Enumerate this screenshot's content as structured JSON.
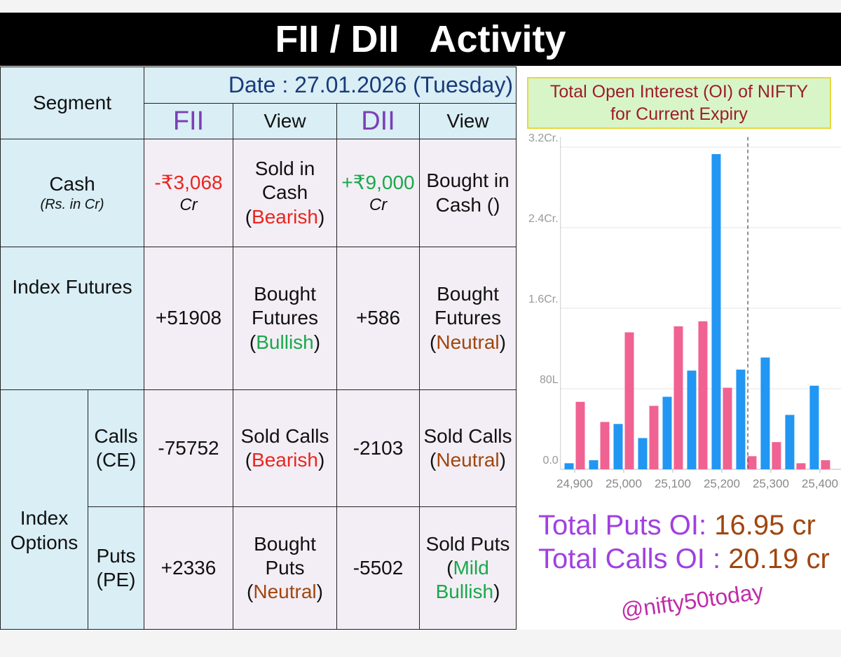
{
  "header": {
    "title": "FII / DII   Activity"
  },
  "table": {
    "segment_label": "Segment",
    "date": "Date : 27.01.2026 (Tuesday)",
    "columns": [
      "FII",
      "View",
      "DII",
      "View"
    ],
    "cash": {
      "segment": "Cash",
      "note": "(Rs. in Cr)",
      "fii": {
        "amount": "-₹3,068",
        "unit": "Cr",
        "color": "#e8261f"
      },
      "fii_view": {
        "before": "Sold in Cash (",
        "word": "Bearish",
        "after": ")",
        "color": "#e8261f"
      },
      "dii": {
        "amount": "+₹9,000",
        "unit": "Cr",
        "color": "#1aa84a"
      },
      "dii_view": {
        "text": "Bought in Cash ()"
      }
    },
    "futures": {
      "segment": "Index Futures",
      "fii": "+51908",
      "fii_view": {
        "before": "Bought Futures (",
        "word": "Bullish",
        "after": ")",
        "color": "#1aa84a"
      },
      "dii": "+586",
      "dii_view": {
        "before": "Bought Futures (",
        "word": "Neutral",
        "after": ")",
        "color": "#a0460f"
      }
    },
    "options": {
      "segment": "Index Options",
      "rows": [
        {
          "sub": "Calls (CE)",
          "fii": "-75752",
          "fii_view": {
            "before": "Sold Calls (",
            "word": "Bearish",
            "after": ")",
            "color": "#e8261f"
          },
          "dii": "-2103",
          "dii_view": {
            "before": "Sold Calls (",
            "word": "Neutral",
            "after": ")",
            "color": "#a0460f"
          }
        },
        {
          "sub": "Puts (PE)",
          "fii": "+2336",
          "fii_view": {
            "before": "Bought Puts (",
            "word": "Neutral",
            "after": ")",
            "color": "#a0460f"
          },
          "dii": "-5502",
          "dii_view": {
            "before": "Sold Puts (",
            "word": "Mild Bullish",
            "after": ")",
            "color": "#1aa84a"
          }
        }
      ]
    }
  },
  "chart_data": {
    "type": "bar",
    "title": "Total Open Interest (OI) of NIFTY for Current Expiry",
    "x": [
      24900,
      24950,
      25000,
      25050,
      25100,
      25150,
      25200,
      25250,
      25300,
      25350,
      25400
    ],
    "series": [
      {
        "color": "#2196f3",
        "values": [
          0.06,
          0.09,
          0.45,
          0.31,
          0.72,
          0.98,
          3.13,
          0.99,
          1.11,
          0.54,
          0.83
        ]
      },
      {
        "color": "#f06292",
        "values": [
          0.67,
          0.47,
          1.36,
          0.63,
          1.42,
          1.47,
          0.81,
          0.13,
          0.27,
          0.06,
          0.09
        ]
      }
    ],
    "xlim": [
      24871,
      25443
    ],
    "ylim": [
      0,
      3.3
    ],
    "xticks": [
      {
        "value": 24900,
        "label": "24,900"
      },
      {
        "value": 25000,
        "label": "25,000"
      },
      {
        "value": 25100,
        "label": "25,100"
      },
      {
        "value": 25200,
        "label": "25,200"
      },
      {
        "value": 25300,
        "label": "25,300"
      },
      {
        "value": 25400,
        "label": "25,400"
      }
    ],
    "yticks": [
      {
        "value": 0,
        "label": "0.0"
      },
      {
        "value": 0.8,
        "label": "80L"
      },
      {
        "value": 1.6,
        "label": "1.6Cr."
      },
      {
        "value": 2.4,
        "label": "2.4Cr."
      },
      {
        "value": 3.2,
        "label": "3.2Cr."
      }
    ],
    "grid": true,
    "vline": 25253
  },
  "totals": [
    {
      "label": "Total Puts OI",
      "sep": ":",
      "value": "16.95 cr"
    },
    {
      "label": "Total Calls OI",
      "sep": ":",
      "value": "20.19 cr"
    }
  ],
  "watermark": "@nifty50today"
}
